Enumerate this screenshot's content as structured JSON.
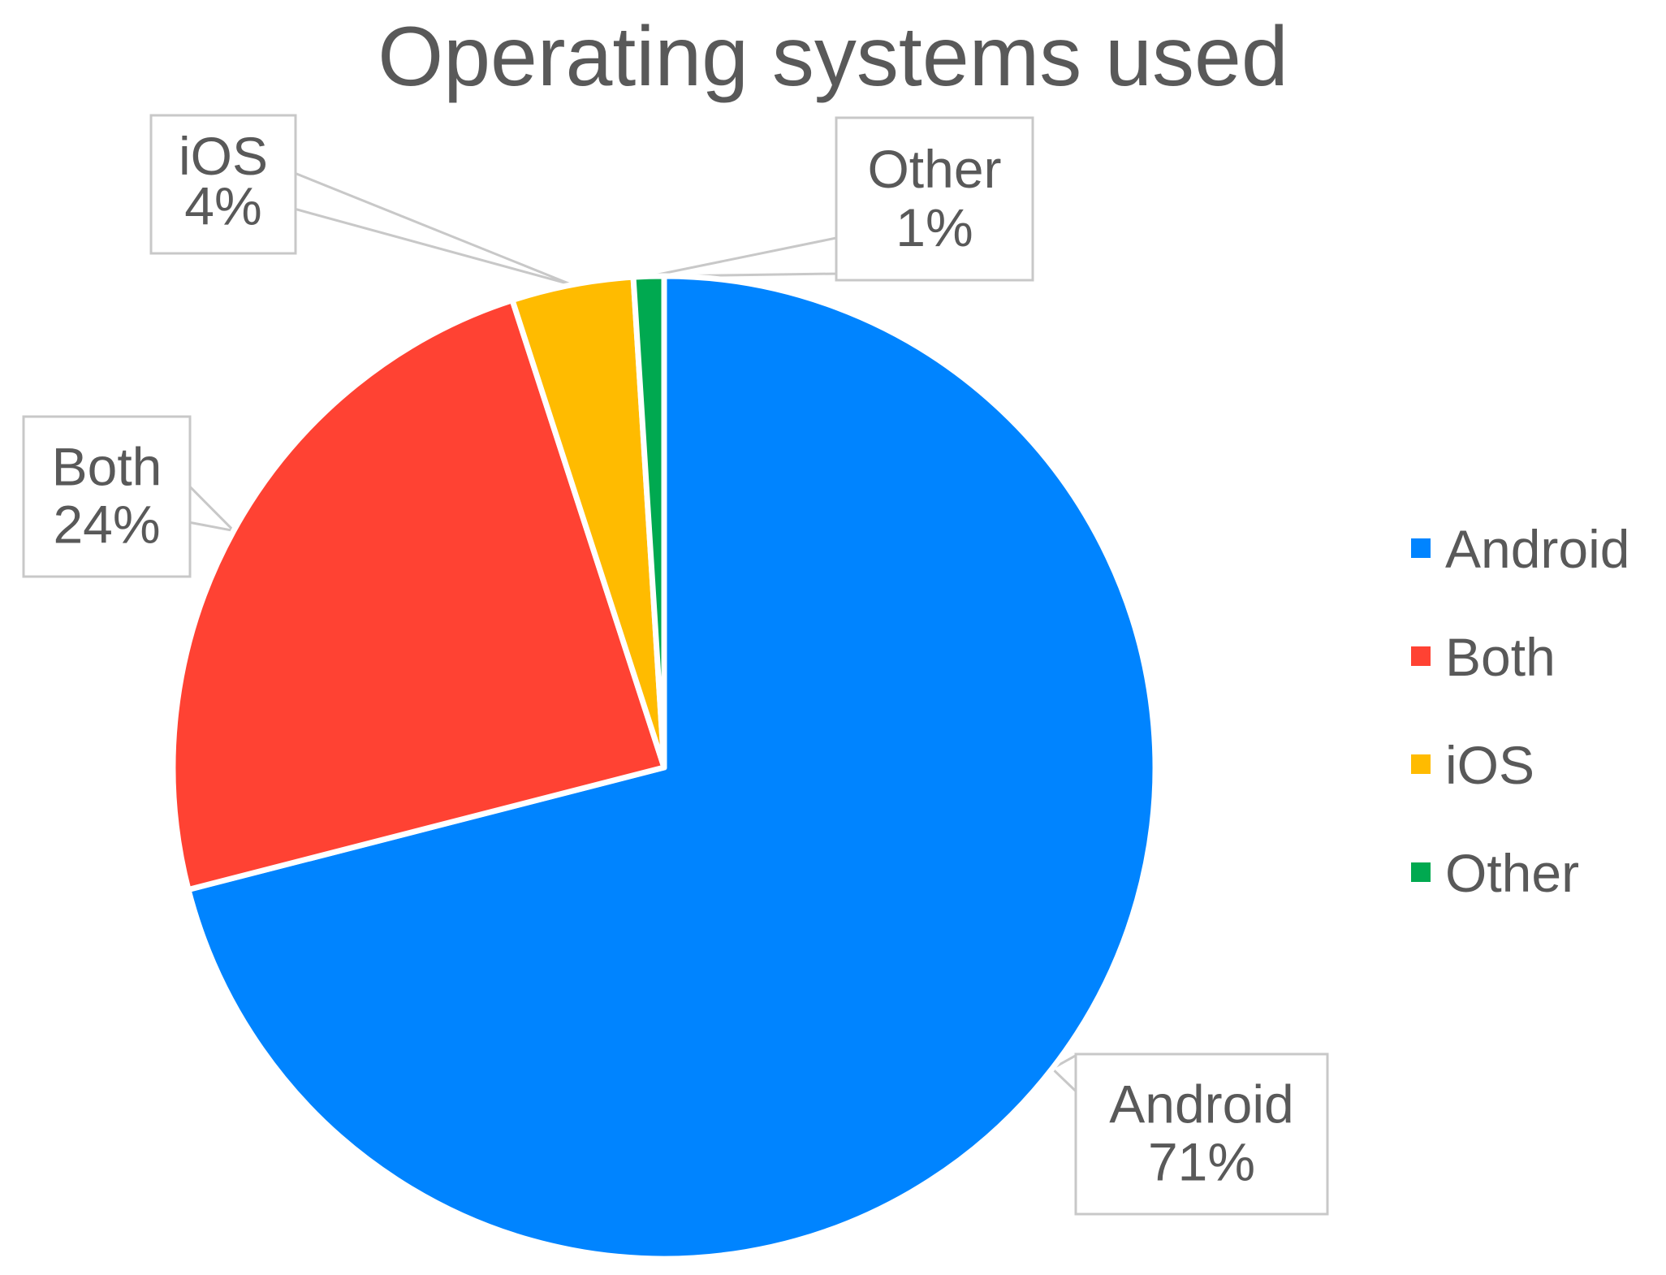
{
  "chart_data": {
    "type": "pie",
    "title": "Operating systems used",
    "slices": [
      {
        "label": "Android",
        "value": 71,
        "value_label": "71%",
        "color": "#0084FF"
      },
      {
        "label": "Both",
        "value": 24,
        "value_label": "24%",
        "color": "#FF4233"
      },
      {
        "label": "iOS",
        "value": 4,
        "value_label": "4%",
        "color": "#FFBB00"
      },
      {
        "label": "Other",
        "value": 1,
        "value_label": "1%",
        "color": "#00A950"
      }
    ],
    "legend": {
      "position": "right",
      "entries": [
        "Android",
        "Both",
        "iOS",
        "Other"
      ]
    },
    "data_labels": "callouts"
  }
}
